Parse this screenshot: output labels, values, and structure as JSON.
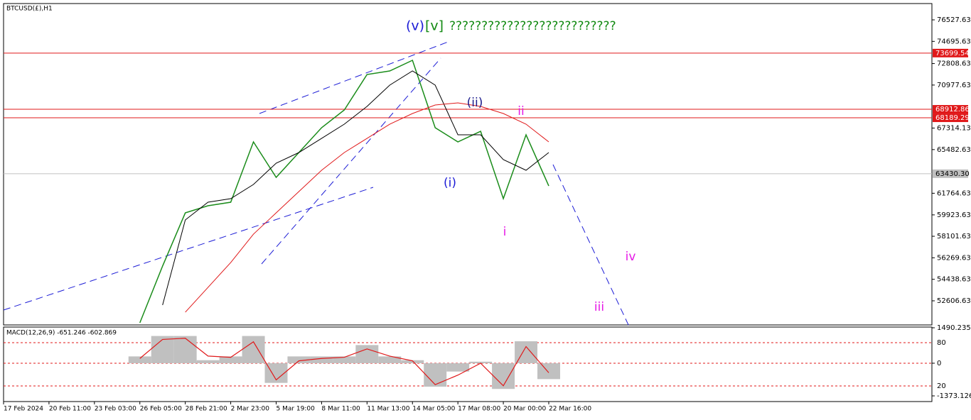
{
  "chart_data": [
    {
      "type": "line",
      "title": "BTCUSD(£),H1",
      "annotations": [
        {
          "text": "(v)",
          "color": "#1c1cd6"
        },
        {
          "text": "[v]",
          "color": "#138a13"
        },
        {
          "text": "??????????????????????????",
          "color": "#138a13"
        },
        {
          "text": "(ii)",
          "color": "#1c1c8c"
        },
        {
          "text": "ii",
          "color": "#e619e6"
        },
        {
          "text": "(i)",
          "color": "#1c1cd6"
        },
        {
          "text": "i",
          "color": "#e619e6"
        },
        {
          "text": "iv",
          "color": "#e619e6"
        },
        {
          "text": "iii",
          "color": "#e619e6"
        }
      ],
      "categories": [
        "17 Feb 2024",
        null,
        "20 Feb 11:00",
        null,
        "23 Feb 03:00",
        null,
        "26 Feb 05:00",
        null,
        "28 Feb 21:00",
        null,
        "2 Mar 23:00",
        null,
        "5 Mar 19:00",
        null,
        "8 Mar 11:00",
        null,
        "11 Mar 13:00",
        null,
        "14 Mar 05:00",
        null,
        "17 Mar 08:00",
        null,
        "20 Mar 00:00",
        null,
        "22 Mar 16:00"
      ],
      "series": [
        {
          "color": "#1a8c1a",
          "values": [
            null,
            null,
            null,
            null,
            null,
            null,
            50733,
            55565,
            60096,
            60700,
            61002,
            66137,
            63117,
            65231,
            67345,
            68855,
            71876,
            72178,
            73084,
            67345,
            66137,
            67043,
            61305,
            66741,
            62392
          ]
        },
        {
          "color": "#000000",
          "values": [
            null,
            null,
            null,
            null,
            null,
            null,
            null,
            52242,
            59492,
            61002,
            61305,
            62513,
            64325,
            65231,
            66439,
            67647,
            69157,
            70970,
            72178,
            70970,
            66741,
            66741,
            64627,
            63721,
            65231
          ]
        },
        {
          "color": "#e0191a",
          "values": [
            null,
            null,
            null,
            null,
            null,
            null,
            null,
            null,
            51638,
            53752,
            55867,
            58283,
            60096,
            61908,
            63721,
            65231,
            66439,
            67647,
            68553,
            69278,
            69459,
            69157,
            68553,
            67647,
            66137
          ]
        }
      ],
      "ylim": [
        50553,
        77917
      ],
      "yticks": [
        76527.63,
        74695.63,
        72808.63,
        70977.63,
        67314.13,
        65482.63,
        61764.63,
        59923.63,
        58101.63,
        56269.63,
        54438.63,
        52606.63
      ],
      "price_levels": [
        {
          "value": 73699.54,
          "color": "#e0191a"
        },
        {
          "value": 68912.86,
          "color": "#e0191a"
        },
        {
          "value": 68189.29,
          "color": "#e0191a"
        },
        {
          "value": {
            "value": 63430.3,
            "label": "63430.30"
          },
          "color": "#c0c0c0"
        }
      ]
    },
    {
      "type": "macd",
      "title": "MACD(12,26,9) -651.246 -602.869",
      "series": [
        {
          "type": "bar",
          "color": "#c0c0c0",
          "values": [
            null,
            null,
            null,
            null,
            null,
            null,
            286,
            1145,
            1145,
            127,
            286,
            1145,
            -827,
            286,
            286,
            286,
            763,
            286,
            127,
            -986,
            -350,
            64,
            -1081,
            922,
            -668
          ]
        },
        {
          "type": "line",
          "color": "#e0191a",
          "values": [
            null,
            null,
            null,
            null,
            null,
            null,
            200,
            1000,
            1050,
            300,
            250,
            900,
            -700,
            100,
            200,
            250,
            600,
            300,
            100,
            -900,
            -500,
            0,
            -950,
            700,
            -400
          ]
        }
      ],
      "ylim": [
        -1373.126,
        1490.235
      ],
      "yticks": [
        1490.235,
        0,
        -1373.126
      ],
      "level_labels": [
        "80",
        "20"
      ]
    }
  ]
}
